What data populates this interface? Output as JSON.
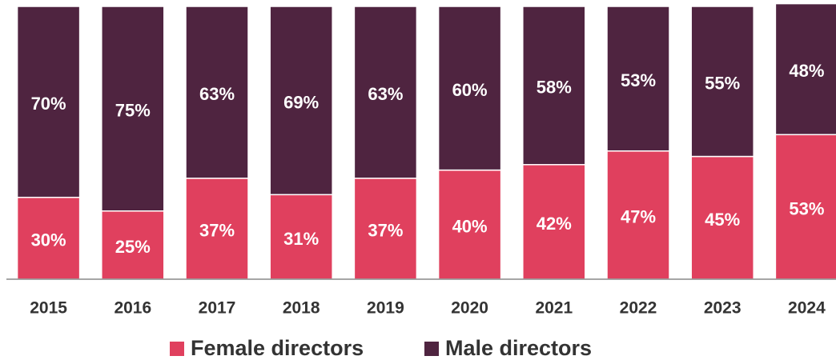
{
  "chart_data": {
    "type": "stacked_bar",
    "categories": [
      "2015",
      "2016",
      "2017",
      "2018",
      "2019",
      "2020",
      "2021",
      "2022",
      "2023",
      "2024"
    ],
    "series": [
      {
        "name": "Female directors",
        "color": "#e0405e",
        "values": [
          30,
          25,
          37,
          31,
          37,
          40,
          42,
          47,
          45,
          53
        ],
        "value_labels": [
          "30%",
          "25%",
          "37%",
          "31%",
          "37%",
          "40%",
          "42%",
          "47%",
          "45%",
          "53%"
        ]
      },
      {
        "name": "Male directors",
        "color": "#4f2440",
        "values": [
          70,
          75,
          63,
          69,
          63,
          60,
          58,
          53,
          55,
          48
        ],
        "value_labels": [
          "70%",
          "75%",
          "63%",
          "69%",
          "63%",
          "60%",
          "58%",
          "53%",
          "55%",
          "48%"
        ]
      }
    ],
    "ylim": [
      0,
      100
    ],
    "legend": "bottom"
  }
}
